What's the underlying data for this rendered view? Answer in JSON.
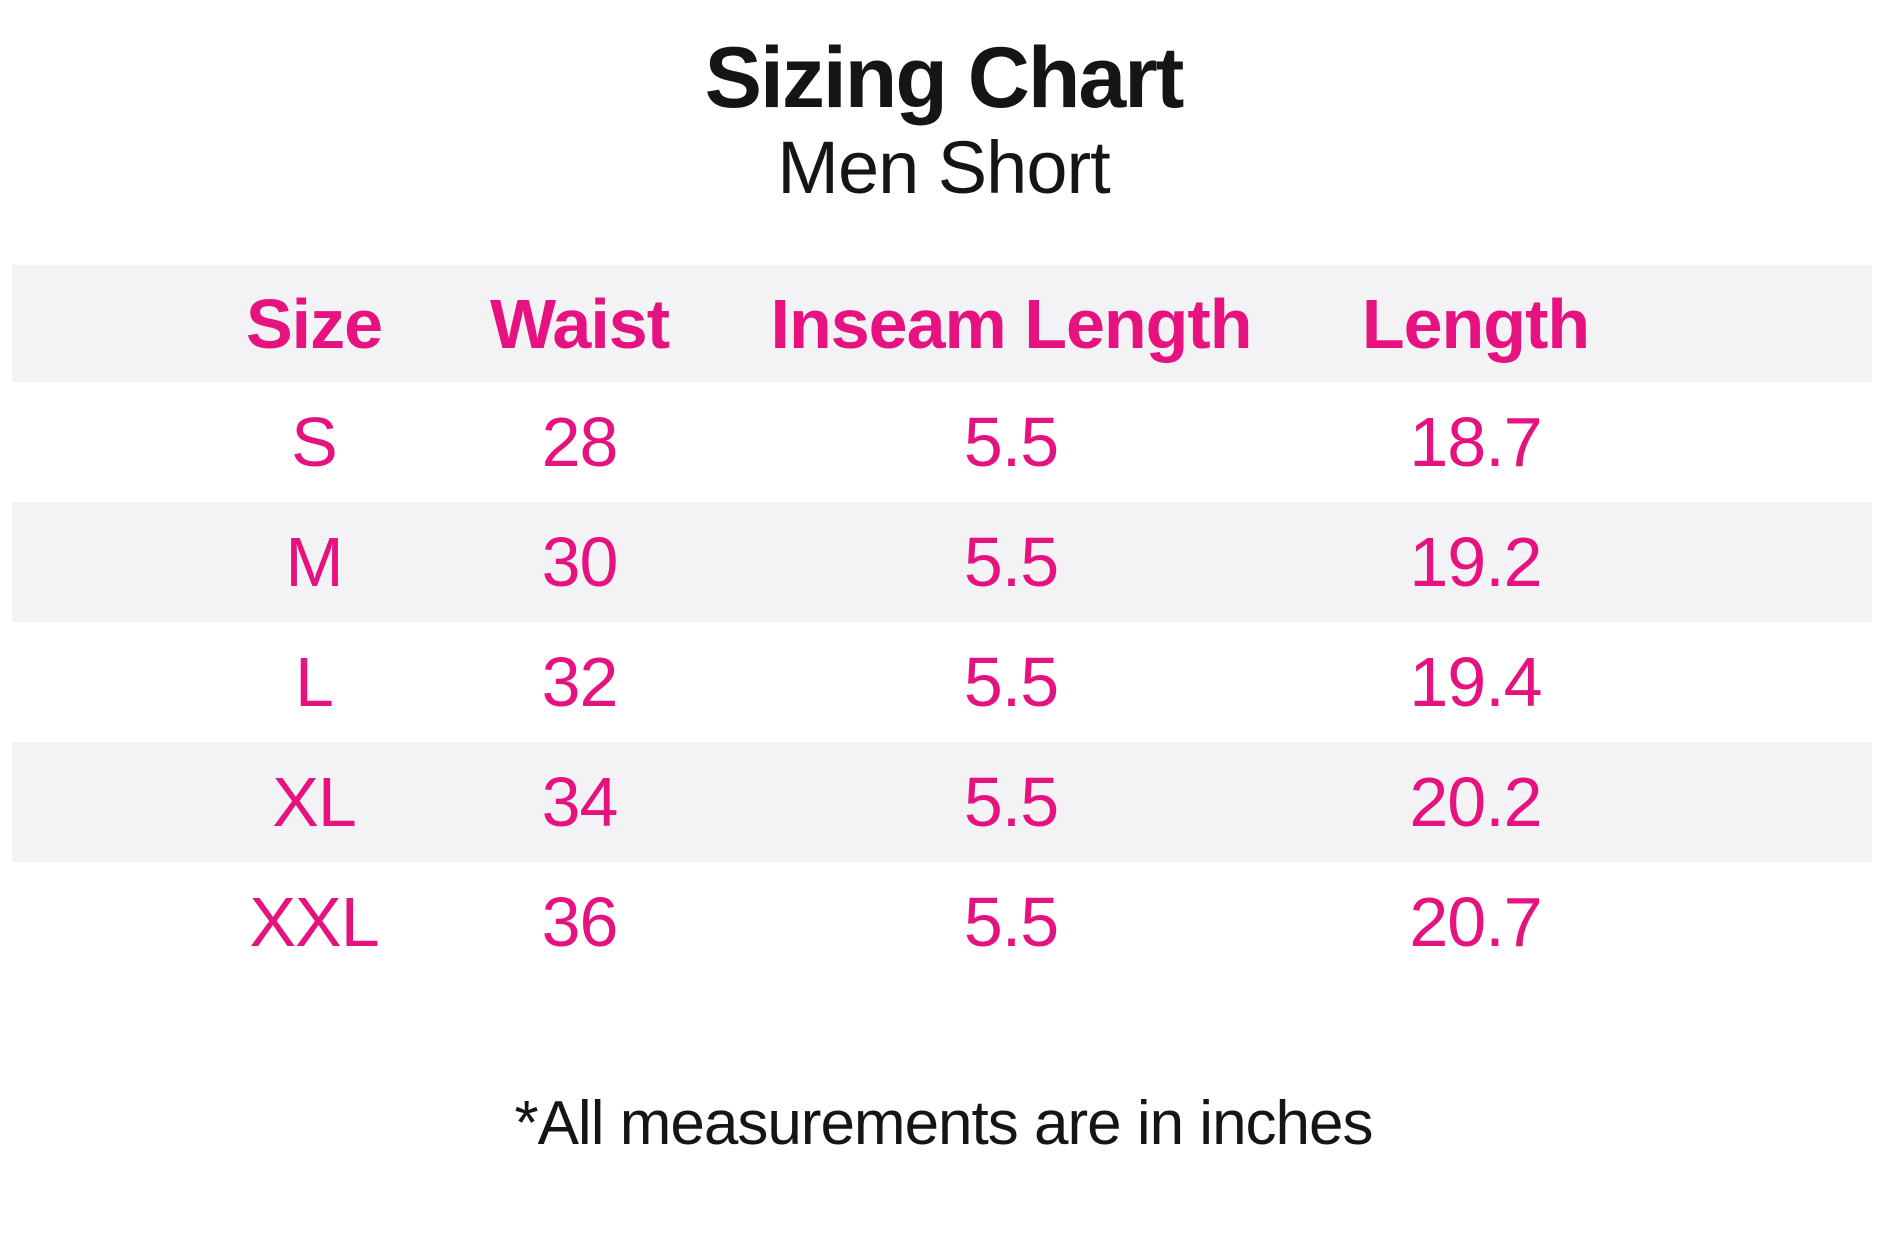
{
  "page": {
    "title": "Sizing Chart",
    "subtitle": "Men Short",
    "footnote": "*All measurements are in inches"
  },
  "colors": {
    "accent_pink": "#e5127f",
    "stripe_gray": "#f3f3f5",
    "text_black": "#151515"
  },
  "chart_data": {
    "type": "table",
    "title": "Sizing Chart",
    "subtitle": "Men Short",
    "units": "inches",
    "columns": [
      "Size",
      "Waist",
      "Inseam Length",
      "Length"
    ],
    "rows": [
      [
        "S",
        "28",
        "5.5",
        "18.7"
      ],
      [
        "M",
        "30",
        "5.5",
        "19.2"
      ],
      [
        "L",
        "32",
        "5.5",
        "19.4"
      ],
      [
        "XL",
        "34",
        "5.5",
        "20.2"
      ],
      [
        "XXL",
        "36",
        "5.5",
        "20.7"
      ]
    ],
    "striped_rows": [
      "header",
      "M",
      "XL"
    ],
    "note": "*All measurements are in inches"
  }
}
